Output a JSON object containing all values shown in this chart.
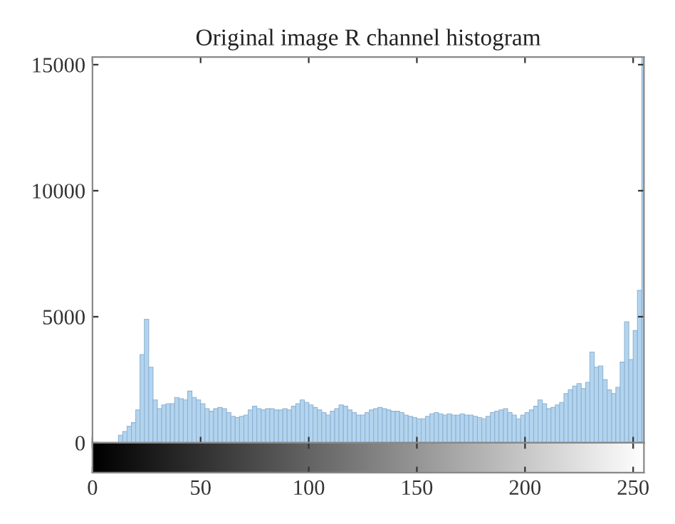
{
  "chart_data": {
    "type": "histogram",
    "title": "Original image R channel histogram",
    "bins": [
      12,
      14,
      16,
      18,
      20,
      22,
      24,
      26,
      28,
      30,
      32,
      34,
      36,
      38,
      40,
      42,
      44,
      46,
      48,
      50,
      52,
      54,
      56,
      58,
      60,
      62,
      64,
      66,
      68,
      70,
      72,
      74,
      76,
      78,
      80,
      82,
      84,
      86,
      88,
      90,
      92,
      94,
      96,
      98,
      100,
      102,
      104,
      106,
      108,
      110,
      112,
      114,
      116,
      118,
      120,
      122,
      124,
      126,
      128,
      130,
      132,
      134,
      136,
      138,
      140,
      142,
      144,
      146,
      148,
      150,
      152,
      154,
      156,
      158,
      160,
      162,
      164,
      166,
      168,
      170,
      172,
      174,
      176,
      178,
      180,
      182,
      184,
      186,
      188,
      190,
      192,
      194,
      196,
      198,
      200,
      202,
      204,
      206,
      208,
      210,
      212,
      214,
      216,
      218,
      220,
      222,
      224,
      226,
      228,
      230,
      232,
      234,
      236,
      238,
      240,
      242,
      244,
      246,
      248,
      250,
      252,
      254,
      255
    ],
    "values": [
      300,
      450,
      650,
      800,
      1300,
      3500,
      4900,
      3000,
      1700,
      1350,
      1500,
      1550,
      1550,
      1800,
      1750,
      1700,
      2050,
      1800,
      1700,
      1550,
      1350,
      1250,
      1350,
      1400,
      1350,
      1200,
      1050,
      1000,
      1050,
      1100,
      1300,
      1450,
      1350,
      1300,
      1350,
      1350,
      1300,
      1300,
      1350,
      1300,
      1450,
      1550,
      1700,
      1600,
      1500,
      1400,
      1300,
      1200,
      1100,
      1250,
      1350,
      1500,
      1450,
      1300,
      1200,
      1100,
      1100,
      1200,
      1300,
      1350,
      1400,
      1350,
      1300,
      1250,
      1250,
      1200,
      1100,
      1050,
      1000,
      950,
      950,
      1050,
      1150,
      1200,
      1150,
      1100,
      1150,
      1100,
      1100,
      1150,
      1100,
      1100,
      1050,
      1000,
      950,
      1050,
      1200,
      1250,
      1300,
      1350,
      1200,
      1100,
      950,
      1100,
      1200,
      1300,
      1450,
      1700,
      1550,
      1350,
      1400,
      1500,
      1600,
      1950,
      2100,
      2250,
      2350,
      2150,
      2400,
      3600,
      3000,
      3050,
      2500,
      2100,
      1950,
      2200,
      3200,
      4800,
      3300,
      4450,
      6050,
      15300
    ],
    "color": "#b3d4ee",
    "xlim": [
      0,
      255
    ],
    "xticks": [
      0,
      50,
      100,
      150,
      200,
      250
    ],
    "ylim": [
      0,
      15300
    ],
    "yticks": [
      0,
      5000,
      10000,
      15000
    ],
    "grid": false
  }
}
